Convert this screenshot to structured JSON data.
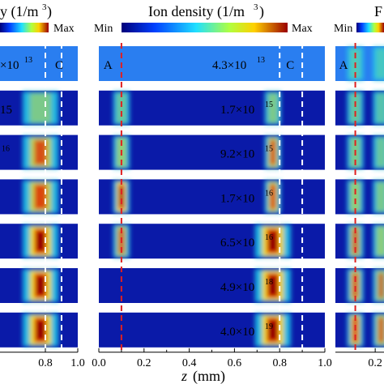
{
  "panels": {
    "left": {
      "title_fragment": "y (1/m",
      "title_unit_close": ")",
      "cbar_min": "",
      "cbar_max": "Max",
      "markers": {
        "c": "C"
      }
    },
    "middle": {
      "title": "Ion density (1/m",
      "title_unit_close": ")",
      "cbar_min": "Min",
      "cbar_max": "Max",
      "markers": {
        "a": "A",
        "c": "C"
      }
    },
    "right": {
      "title_fragment": "F",
      "cbar_min": "Min",
      "cbar_max": "",
      "markers": {
        "a": "A"
      }
    }
  },
  "colors": {
    "low": "#0a1aa8",
    "mid": "#1ec8e8",
    "high": "#f0e020",
    "max": "#8a0000",
    "marker_red": "#e02020",
    "marker_white": "#ffffff",
    "marker_yellow": "#f5e04a"
  },
  "chart_data": {
    "type": "heatmap",
    "title": "Ion density (1/m³)",
    "xlabel": "z (mm)",
    "xlim": [
      0.0,
      1.0
    ],
    "x_ticks_middle": [
      "0.0",
      "0.2",
      "0.4",
      "0.6",
      "0.8",
      "1.0"
    ],
    "x_ticks_left": [
      "0.8",
      "1.0"
    ],
    "x_ticks_right": [
      "0.2"
    ],
    "colorbar": [
      "Min",
      "Max"
    ],
    "marker_lines": [
      {
        "label": "A",
        "z": 0.1,
        "color": "red"
      },
      {
        "label": "C",
        "z": 0.8,
        "color": "white"
      },
      {
        "z": 0.9,
        "color": "white"
      }
    ],
    "rows": [
      {
        "label_mantissa": "4.3",
        "label_exp": "13"
      },
      {
        "label_mantissa": "1.7",
        "label_exp": "15"
      },
      {
        "label_mantissa": "9.2",
        "label_exp": "15"
      },
      {
        "label_mantissa": "1.7",
        "label_exp": "16"
      },
      {
        "label_mantissa": "6.5",
        "label_exp": "16"
      },
      {
        "label_mantissa": "4.9",
        "label_exp": "18"
      },
      {
        "label_mantissa": "4.0",
        "label_exp": "19"
      }
    ],
    "left_partial_labels": [
      {
        "text": "×10",
        "exp": "13"
      },
      {
        "text": "15",
        "exp": ""
      },
      {
        "text": "",
        "exp": "16"
      }
    ]
  }
}
